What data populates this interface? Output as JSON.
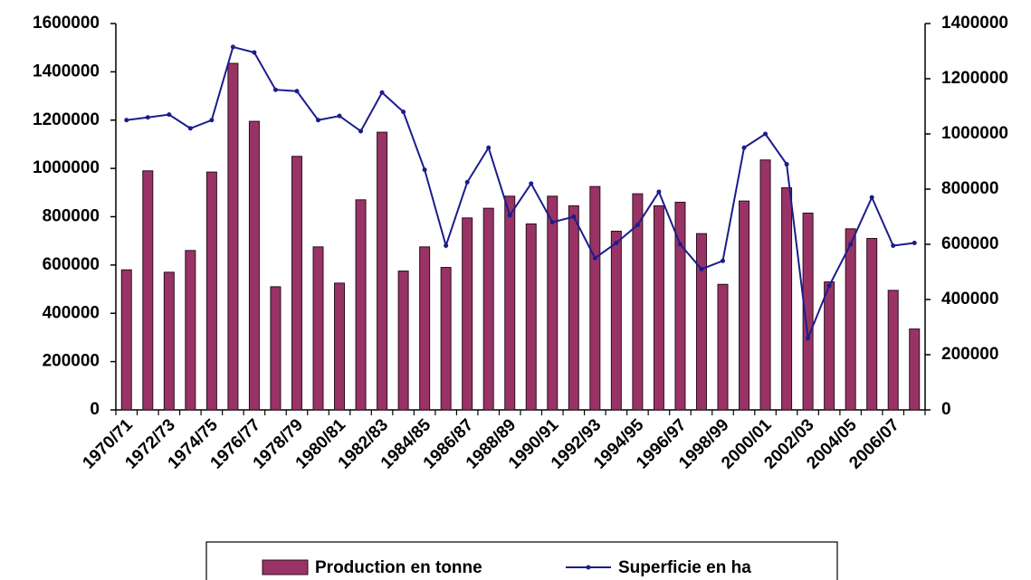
{
  "chart_data": {
    "type": "bar",
    "categories": [
      "1970/71",
      null,
      "1972/73",
      null,
      "1974/75",
      null,
      "1976/77",
      null,
      "1978/79",
      null,
      "1980/81",
      null,
      "1982/83",
      null,
      "1984/85",
      null,
      "1986/87",
      null,
      "1988/89",
      null,
      "1990/91",
      null,
      "1992/93",
      null,
      "1994/95",
      null,
      "1996/97",
      null,
      "1998/99",
      null,
      "2000/01",
      null,
      "2002/03",
      null,
      "2004/05",
      null,
      "2006/07",
      null
    ],
    "series": [
      {
        "name": "Production en tonne",
        "type": "bar",
        "color": "#993366",
        "values": [
          580000,
          990000,
          570000,
          660000,
          985000,
          1435000,
          1195000,
          510000,
          1050000,
          675000,
          525000,
          870000,
          1150000,
          575000,
          675000,
          590000,
          795000,
          835000,
          885000,
          770000,
          885000,
          845000,
          925000,
          740000,
          895000,
          845000,
          860000,
          730000,
          520000,
          865000,
          1035000,
          920000,
          815000,
          530000,
          750000,
          710000,
          495000,
          335000
        ]
      },
      {
        "name": "Superficie en ha",
        "type": "line",
        "axis": "y2",
        "color": "#1c1c8c",
        "values": [
          1050000,
          1060000,
          1070000,
          1020000,
          1050000,
          1315000,
          1295000,
          1160000,
          1155000,
          1050000,
          1065000,
          1010000,
          1150000,
          1080000,
          870000,
          595000,
          825000,
          950000,
          705000,
          820000,
          680000,
          700000,
          550000,
          605000,
          670000,
          790000,
          600000,
          510000,
          540000,
          950000,
          1000000,
          890000,
          260000,
          450000,
          600000,
          770000,
          595000,
          605000
        ]
      }
    ],
    "ylim": [
      0,
      1600000
    ],
    "yticks": [
      0,
      200000,
      400000,
      600000,
      800000,
      1000000,
      1200000,
      1400000,
      1600000
    ],
    "y2lim": [
      0,
      1400000
    ],
    "y2ticks": [
      0,
      200000,
      400000,
      600000,
      800000,
      1000000,
      1200000,
      1400000
    ],
    "grid": false,
    "legend": "bottom"
  }
}
